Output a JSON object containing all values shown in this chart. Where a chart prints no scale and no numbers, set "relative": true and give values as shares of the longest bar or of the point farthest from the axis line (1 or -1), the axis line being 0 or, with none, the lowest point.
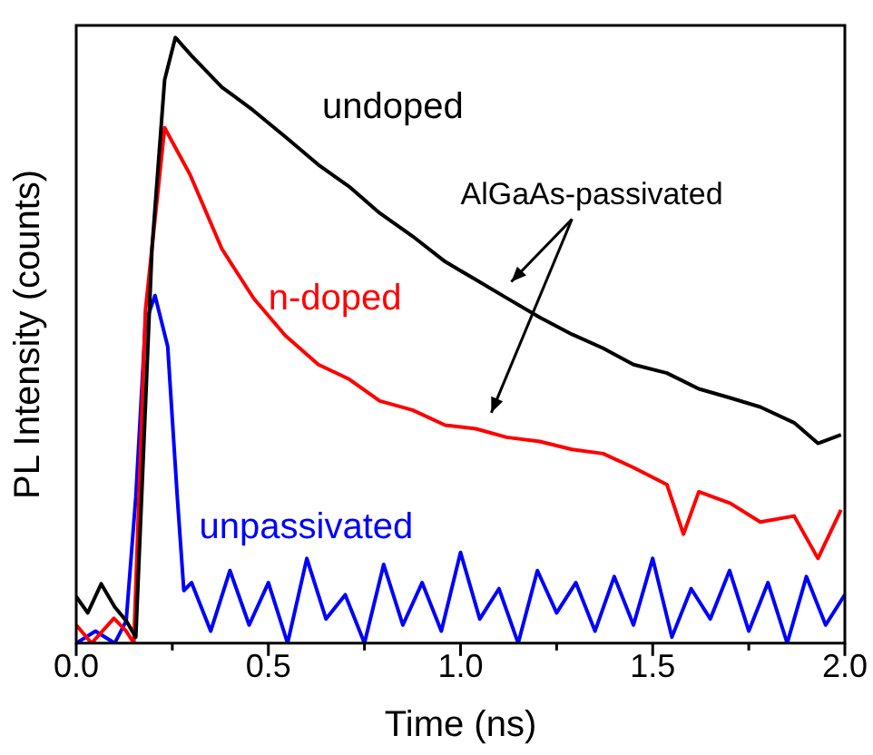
{
  "chart_data": {
    "type": "line",
    "xlabel": "Time (ns)",
    "ylabel": "PL Intensity (counts)",
    "relative": true,
    "legend": false,
    "marker": "none",
    "line_style": "solid",
    "xlim": [
      0,
      2
    ],
    "xticks": [
      {
        "value": 0,
        "label": "0.0"
      },
      {
        "value": 0.25,
        "label": null
      },
      0.5,
      {
        "value": 0.75,
        "label": null
      },
      {
        "value": 1,
        "label": "1.0"
      },
      {
        "value": 1.25,
        "label": null
      },
      1.5,
      {
        "value": 1.75,
        "label": null
      },
      {
        "value": 2,
        "label": "2.0"
      }
    ],
    "annotations": [
      "AlGaAs-passivated"
    ],
    "series": [
      {
        "name": "undoped",
        "color": "#000000",
        "x": [
          0,
          0.03,
          0.065,
          0.1,
          0.13,
          0.155,
          0.197,
          0.23,
          0.258,
          0.3,
          0.379,
          0.46,
          0.544,
          0.63,
          0.71,
          0.79,
          0.875,
          0.96,
          1.04,
          1.12,
          1.206,
          1.29,
          1.371,
          1.45,
          1.537,
          1.62,
          1.702,
          1.78,
          1.868,
          1.93,
          1.99
        ],
        "values": [
          0.077,
          0.05,
          0.098,
          0.06,
          0.037,
          0.01,
          0.65,
          0.93,
          1.0,
          0.97,
          0.918,
          0.88,
          0.836,
          0.79,
          0.754,
          0.71,
          0.672,
          0.63,
          0.6,
          0.57,
          0.538,
          0.51,
          0.487,
          0.46,
          0.446,
          0.42,
          0.405,
          0.39,
          0.364,
          0.33,
          0.344
        ]
      },
      {
        "name": "n-doped",
        "color": "#ff0000",
        "x": [
          0,
          0.04,
          0.098,
          0.13,
          0.15,
          0.18,
          0.23,
          0.296,
          0.379,
          0.462,
          0.544,
          0.63,
          0.71,
          0.79,
          0.875,
          0.96,
          1.04,
          1.12,
          1.206,
          1.29,
          1.371,
          1.45,
          1.537,
          1.58,
          1.62,
          1.702,
          1.78,
          1.868,
          1.93,
          1.99
        ],
        "values": [
          0.03,
          0.0,
          0.041,
          0.02,
          0.0,
          0.549,
          0.851,
          0.774,
          0.651,
          0.569,
          0.508,
          0.46,
          0.436,
          0.4,
          0.385,
          0.36,
          0.354,
          0.34,
          0.333,
          0.32,
          0.313,
          0.29,
          0.262,
          0.18,
          0.25,
          0.231,
          0.2,
          0.21,
          0.14,
          0.22
        ]
      },
      {
        "name": "unpassivated",
        "color": "#0000ff",
        "x": [
          0,
          0.05,
          0.1,
          0.13,
          0.155,
          0.18,
          0.205,
          0.238,
          0.263,
          0.28,
          0.3,
          0.35,
          0.4,
          0.45,
          0.5,
          0.55,
          0.6,
          0.65,
          0.7,
          0.75,
          0.8,
          0.85,
          0.9,
          0.95,
          1.0,
          1.05,
          1.1,
          1.15,
          1.2,
          1.25,
          1.3,
          1.35,
          1.4,
          1.45,
          1.5,
          1.55,
          1.6,
          1.65,
          1.7,
          1.75,
          1.8,
          1.85,
          1.9,
          1.95,
          2.0
        ],
        "values": [
          0.0,
          0.02,
          0.0,
          0.037,
          0.241,
          0.528,
          0.574,
          0.49,
          0.241,
          0.087,
          0.1,
          0.02,
          0.12,
          0.03,
          0.1,
          0.0,
          0.14,
          0.04,
          0.08,
          0.0,
          0.13,
          0.03,
          0.1,
          0.02,
          0.15,
          0.04,
          0.09,
          0.0,
          0.12,
          0.05,
          0.1,
          0.02,
          0.11,
          0.03,
          0.14,
          0.01,
          0.09,
          0.04,
          0.12,
          0.02,
          0.1,
          0.0,
          0.11,
          0.03,
          0.08
        ]
      }
    ]
  }
}
